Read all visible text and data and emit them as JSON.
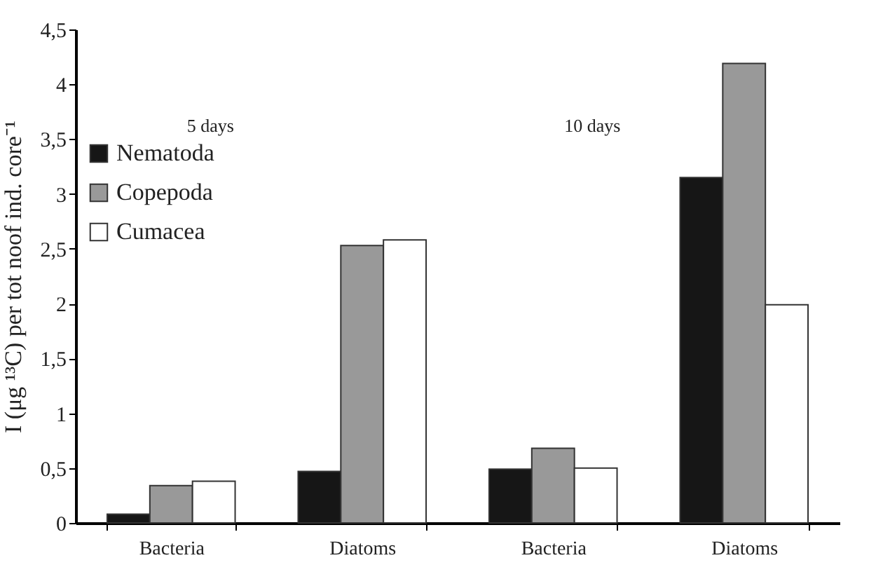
{
  "chart_data": {
    "type": "bar",
    "ylabel": "I (μg ¹³C) per tot noof ind. core⁻¹",
    "categories": [
      "Bacteria",
      "Diatoms",
      "Bacteria",
      "Diatoms"
    ],
    "series": [
      {
        "name": "Nematoda",
        "color": "#161616",
        "values": [
          0.08,
          0.47,
          0.49,
          3.15
        ]
      },
      {
        "name": "Copepoda",
        "color": "#999999",
        "values": [
          0.34,
          2.53,
          0.68,
          4.19
        ]
      },
      {
        "name": "Cumacea",
        "color": "#ffffff",
        "values": [
          0.38,
          2.58,
          0.5,
          1.99
        ]
      }
    ],
    "ylim": [
      0,
      4.5
    ],
    "yticks": [
      {
        "value": 0,
        "label": "0"
      },
      {
        "value": 0.5,
        "label": "0,5"
      },
      {
        "value": 1,
        "label": "1"
      },
      {
        "value": 1.5,
        "label": "1,5"
      },
      {
        "value": 2,
        "label": "2"
      },
      {
        "value": 2.5,
        "label": "2,5"
      },
      {
        "value": 3,
        "label": "3"
      },
      {
        "value": 3.5,
        "label": "3,5"
      },
      {
        "value": 4,
        "label": "4"
      },
      {
        "value": 4.5,
        "label": "4,5"
      }
    ],
    "annotations": [
      "5 days",
      "10 days"
    ],
    "grid": false,
    "legend": "top left"
  }
}
